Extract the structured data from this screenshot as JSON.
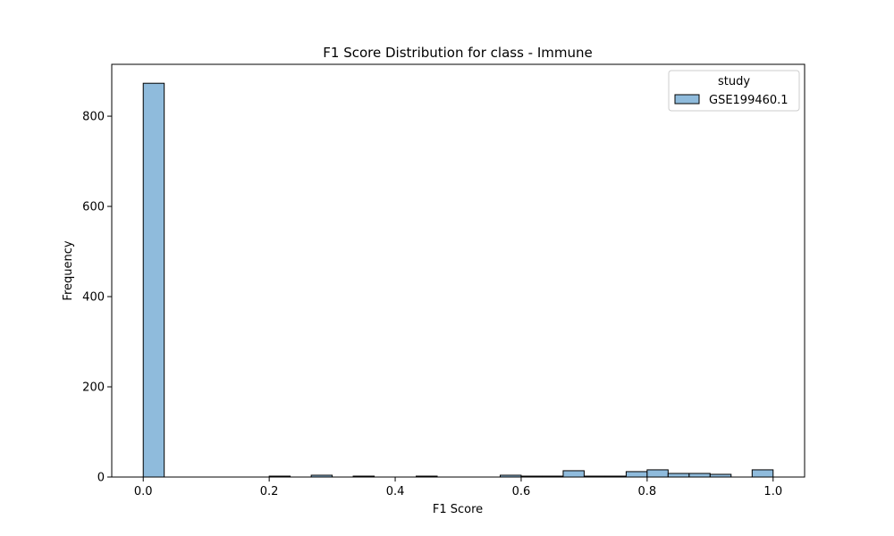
{
  "chart_data": {
    "type": "bar",
    "title": "F1 Score Distribution for class - Immune",
    "xlabel": "F1 Score",
    "ylabel": "Frequency",
    "xlim": [
      -0.05,
      1.05
    ],
    "ylim": [
      0,
      915
    ],
    "xticks": [
      0.0,
      0.2,
      0.4,
      0.6,
      0.8,
      1.0
    ],
    "xtick_labels": [
      "0.0",
      "0.2",
      "0.4",
      "0.6",
      "0.8",
      "1.0"
    ],
    "yticks": [
      0,
      200,
      400,
      600,
      800
    ],
    "ytick_labels": [
      "0",
      "200",
      "400",
      "600",
      "800"
    ],
    "grid": false,
    "legend": {
      "title": "study",
      "position": "top-right"
    },
    "series": [
      {
        "name": "GSE199460.1",
        "color": "#8fbbdc",
        "edge_color": "#000000",
        "bin_edges": [
          0.0,
          0.0333,
          0.0667,
          0.1,
          0.1333,
          0.1667,
          0.2,
          0.2333,
          0.2667,
          0.3,
          0.3333,
          0.3667,
          0.4,
          0.4333,
          0.4667,
          0.5,
          0.5333,
          0.5667,
          0.6,
          0.6333,
          0.6667,
          0.7,
          0.7333,
          0.7667,
          0.8,
          0.8333,
          0.8667,
          0.9,
          0.9333,
          0.9667,
          1.0
        ],
        "counts": [
          873,
          0,
          0,
          0,
          0,
          0,
          2,
          0,
          4,
          0,
          2,
          0,
          0,
          2,
          0,
          0,
          0,
          4,
          2,
          2,
          14,
          2,
          2,
          12,
          16,
          8,
          8,
          6,
          0,
          16
        ]
      }
    ]
  }
}
